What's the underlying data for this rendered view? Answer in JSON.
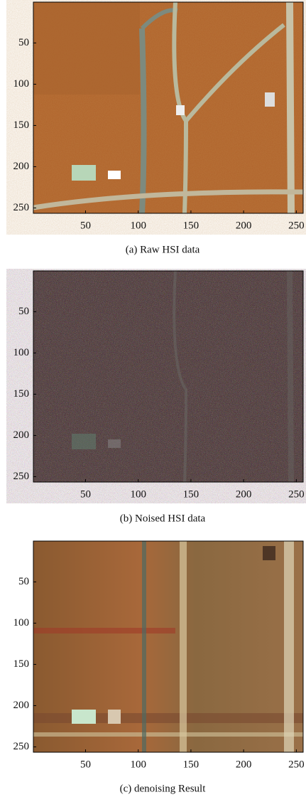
{
  "chart_data": [
    {
      "type": "image",
      "caption": "(a)  Raw HSI data",
      "xlim": [
        0.5,
        256.5
      ],
      "ylim": [
        256.5,
        0.5
      ],
      "xticks": [
        50,
        100,
        150,
        200,
        250
      ],
      "yticks": [
        50,
        100,
        150,
        200,
        250
      ]
    },
    {
      "type": "image",
      "caption": "(b)  Noised HSI data",
      "xlim": [
        0.5,
        256.5
      ],
      "ylim": [
        256.5,
        0.5
      ],
      "xticks": [
        50,
        100,
        150,
        200,
        250
      ],
      "yticks": [
        50,
        100,
        150,
        200,
        250
      ]
    },
    {
      "type": "image",
      "caption": "(c)  denoising Result",
      "xlim": [
        0.5,
        256.5
      ],
      "ylim": [
        256.5,
        0.5
      ],
      "xticks": [
        50,
        100,
        150,
        200,
        250
      ],
      "yticks": [
        50,
        100,
        150,
        200,
        250
      ]
    }
  ]
}
